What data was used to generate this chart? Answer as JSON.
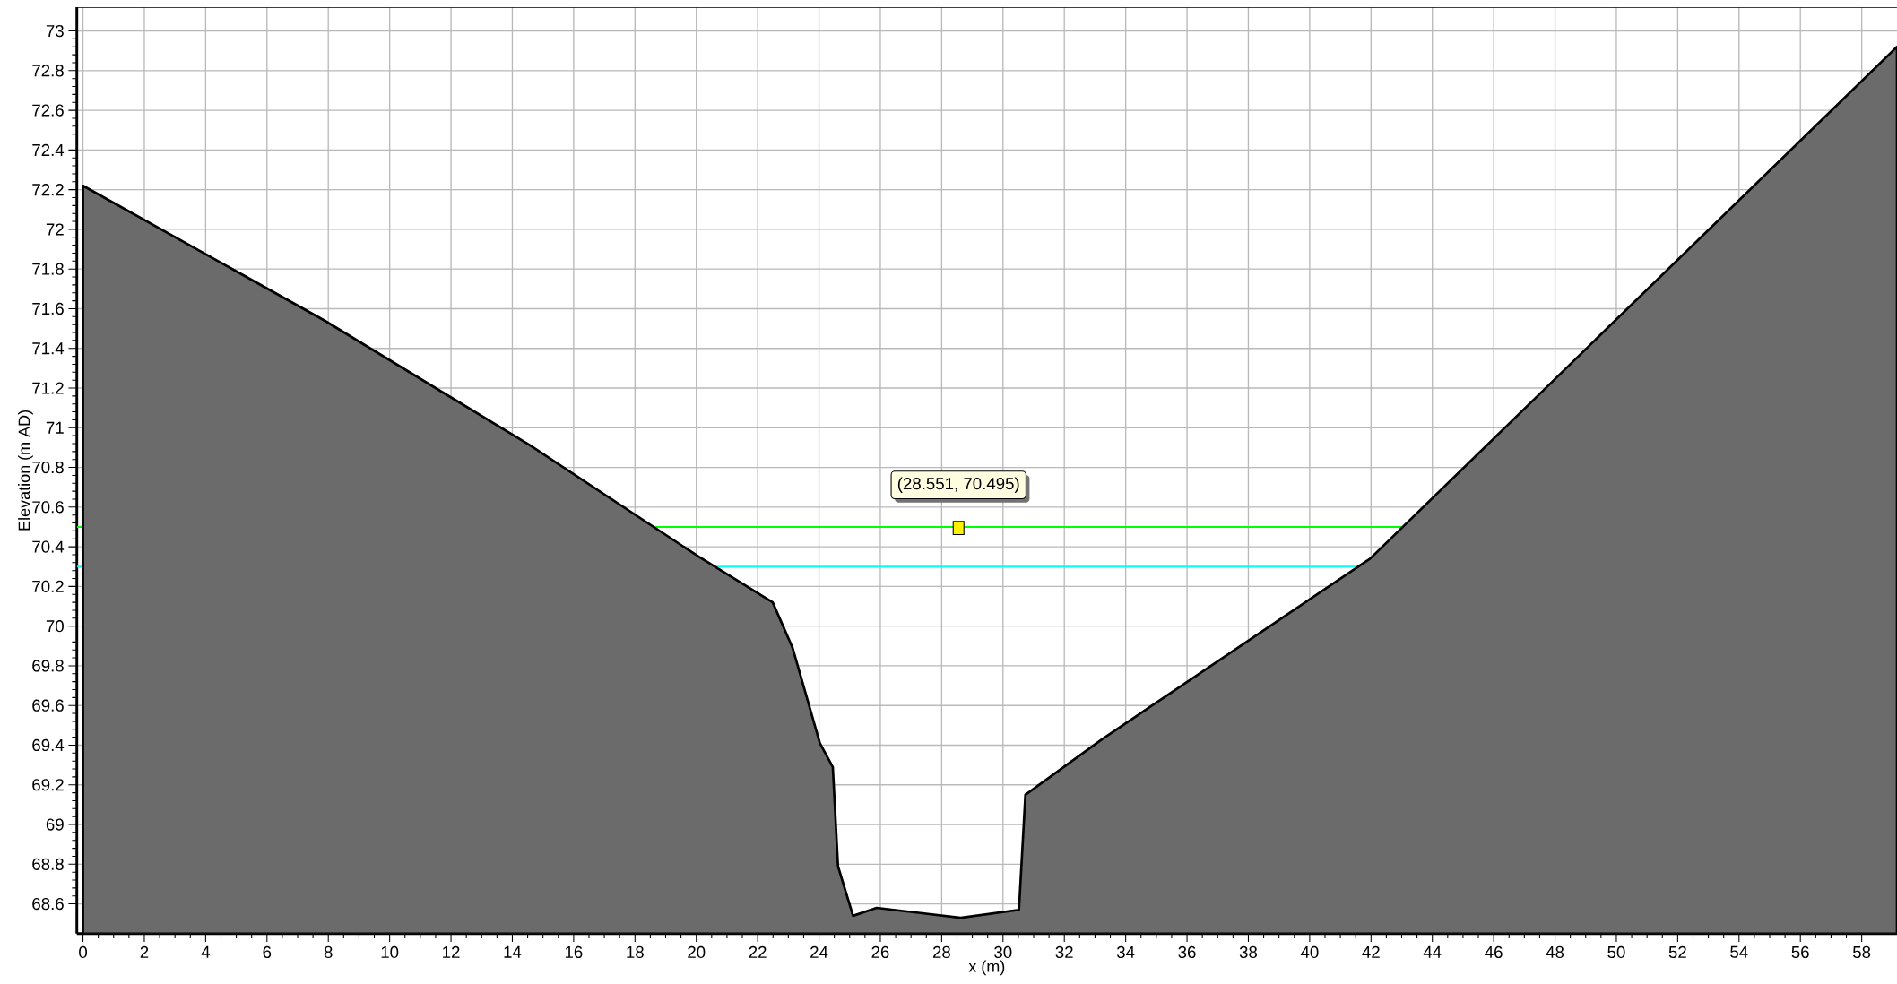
{
  "chart_data": {
    "type": "area",
    "xlabel": "x (m)",
    "ylabel": "Elevation (m AD)",
    "x": [
      0,
      7.88,
      14.59,
      20.08,
      22.49,
      23.14,
      24.03,
      24.45,
      24.62,
      25.11,
      25.88,
      28.62,
      30.52,
      30.73,
      33.23,
      41.97,
      59.15
    ],
    "series": [
      {
        "color": "#6b6b6b",
        "values": [
          72.22,
          71.54,
          70.91,
          70.35,
          70.12,
          69.89,
          69.41,
          69.29,
          68.79,
          68.54,
          68.58,
          68.53,
          68.57,
          69.15,
          69.43,
          70.34,
          72.92
        ]
      }
    ],
    "xlim": [
      -0.2,
      59.15
    ],
    "ylim": [
      68.45,
      73.12
    ],
    "xticks": [
      0,
      2,
      4,
      6,
      8,
      10,
      12,
      14,
      16,
      18,
      20,
      22,
      24,
      26,
      28,
      30,
      32,
      34,
      36,
      38,
      40,
      42,
      44,
      46,
      48,
      50,
      52,
      54,
      56,
      58
    ],
    "yticks": [
      68.6,
      68.8,
      69,
      69.2,
      69.4,
      69.6,
      69.8,
      70,
      70.2,
      70.4,
      70.6,
      70.8,
      71,
      71.2,
      71.4,
      71.6,
      71.8,
      72,
      72.2,
      72.4,
      72.6,
      72.8,
      73
    ],
    "grid": true,
    "ref_lines": [
      {
        "axis": "y",
        "value": 70.5,
        "color": "#00ff00"
      },
      {
        "axis": "y",
        "value": 70.3,
        "color": "#00ffff"
      }
    ],
    "annotations": [
      {
        "text": "(28.551, 70.495)",
        "x": 28.551,
        "y": 70.495
      }
    ]
  }
}
